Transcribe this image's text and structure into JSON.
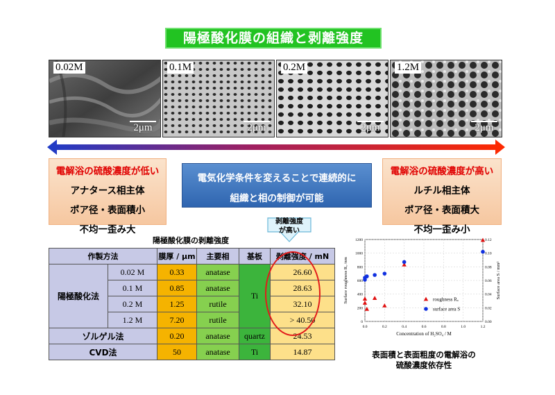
{
  "title": "陽極酸化膜の組織と剥離強度",
  "sem_images": [
    {
      "label": "0.02M",
      "scale": "2μm"
    },
    {
      "label": "0.1M",
      "scale": "2μm"
    },
    {
      "label": "0.2M",
      "scale": "2μm"
    },
    {
      "label": "1.2M",
      "scale": "2μm"
    }
  ],
  "left_box": {
    "headline": "電解浴の硫酸濃度が低い",
    "lines": [
      "アナタース相主体",
      "ポア径・表面積小",
      "不均一歪み大"
    ]
  },
  "right_box": {
    "headline": "電解浴の硫酸濃度が高い",
    "lines": [
      "ルチル相主体",
      "ポア径・表面積大",
      "不均一歪み小"
    ]
  },
  "middle_box": {
    "lines": [
      "電気化学条件を変えることで連続的に",
      "組織と相の制御が可能"
    ]
  },
  "callout": {
    "line1": "剥離強度",
    "line2": "が高い"
  },
  "table": {
    "title": "陽極酸化膜の剥離強度",
    "headers": {
      "method": "作製方法",
      "thickness": "膜厚 / μm",
      "phase": "主要相",
      "substrate": "基板",
      "strength": "剥離強度 / mN"
    },
    "anodic_label": "陽極酸化法",
    "anodic_substrate": "Ti",
    "anodic_rows": [
      {
        "conc": "0.02 M",
        "thickness": "0.33",
        "phase": "anatase",
        "strength": "26.60"
      },
      {
        "conc": "0.1 M",
        "thickness": "0.85",
        "phase": "anatase",
        "strength": "28.63"
      },
      {
        "conc": "0.2 M",
        "thickness": "1.25",
        "phase": "rutile",
        "strength": "32.10"
      },
      {
        "conc": "1.2 M",
        "thickness": "7.20",
        "phase": "rutile",
        "strength": "> 40.50"
      }
    ],
    "solgel": {
      "method": "ゾルゲル法",
      "thickness": "0.20",
      "phase": "anatase",
      "substrate": "quartz",
      "strength": "24.53"
    },
    "cvd": {
      "method": "CVD法",
      "thickness": "50",
      "phase": "anatase",
      "substrate": "Ti",
      "strength": "14.87"
    }
  },
  "chart_data": {
    "type": "scatter",
    "xlabel": "Concentration of H₂SO₄ / M",
    "ylabel_left": "Surface roughness Rₐ /nm",
    "ylabel_right": "Surface area S / mm²",
    "x_ticks": [
      "0.0",
      "0.2",
      "0.4",
      "0.6",
      "0.8",
      "1.0",
      "1.2"
    ],
    "xlim": [
      0,
      1.2
    ],
    "y_left_ticks": [
      "0",
      "200",
      "400",
      "600",
      "800",
      "1000",
      "1200"
    ],
    "ylim_left": [
      0,
      1200
    ],
    "y_right_ticks": [
      "0.00",
      "0.02",
      "0.04",
      "0.06",
      "0.08",
      "0.10",
      "0.12"
    ],
    "ylim_right": [
      0,
      0.12
    ],
    "grid": true,
    "legend_position": "bottom-right",
    "series": [
      {
        "name": "roughness Rₐ",
        "marker": "triangle",
        "color": "#e01010",
        "axis": "left",
        "points": [
          [
            0.0,
            330
          ],
          [
            0.0,
            270
          ],
          [
            0.02,
            180
          ],
          [
            0.1,
            340
          ],
          [
            0.2,
            230
          ],
          [
            0.4,
            830
          ],
          [
            1.2,
            1190
          ]
        ]
      },
      {
        "name": "surface area S",
        "marker": "circle",
        "color": "#1030e0",
        "axis": "left",
        "points": [
          [
            0.0,
            610
          ],
          [
            0.0,
            640
          ],
          [
            0.02,
            660
          ],
          [
            0.1,
            680
          ],
          [
            0.2,
            700
          ],
          [
            0.4,
            870
          ],
          [
            1.2,
            1020
          ]
        ]
      }
    ]
  },
  "chart_caption": {
    "line1": "表面積と表面粗度の電解浴の",
    "line2": "硫酸濃度依存性"
  },
  "colors": {
    "title_bg": "#22c322",
    "arrow_left": "#1e3cc8",
    "arrow_right": "#ff2a00",
    "headline_red": "#e00000",
    "table_header": "#c7c9e6",
    "thickness_col": "#f5b300",
    "phase_col": "#86d04f",
    "substrate_col": "#3cb43c",
    "strength_col": "#fde08a"
  }
}
